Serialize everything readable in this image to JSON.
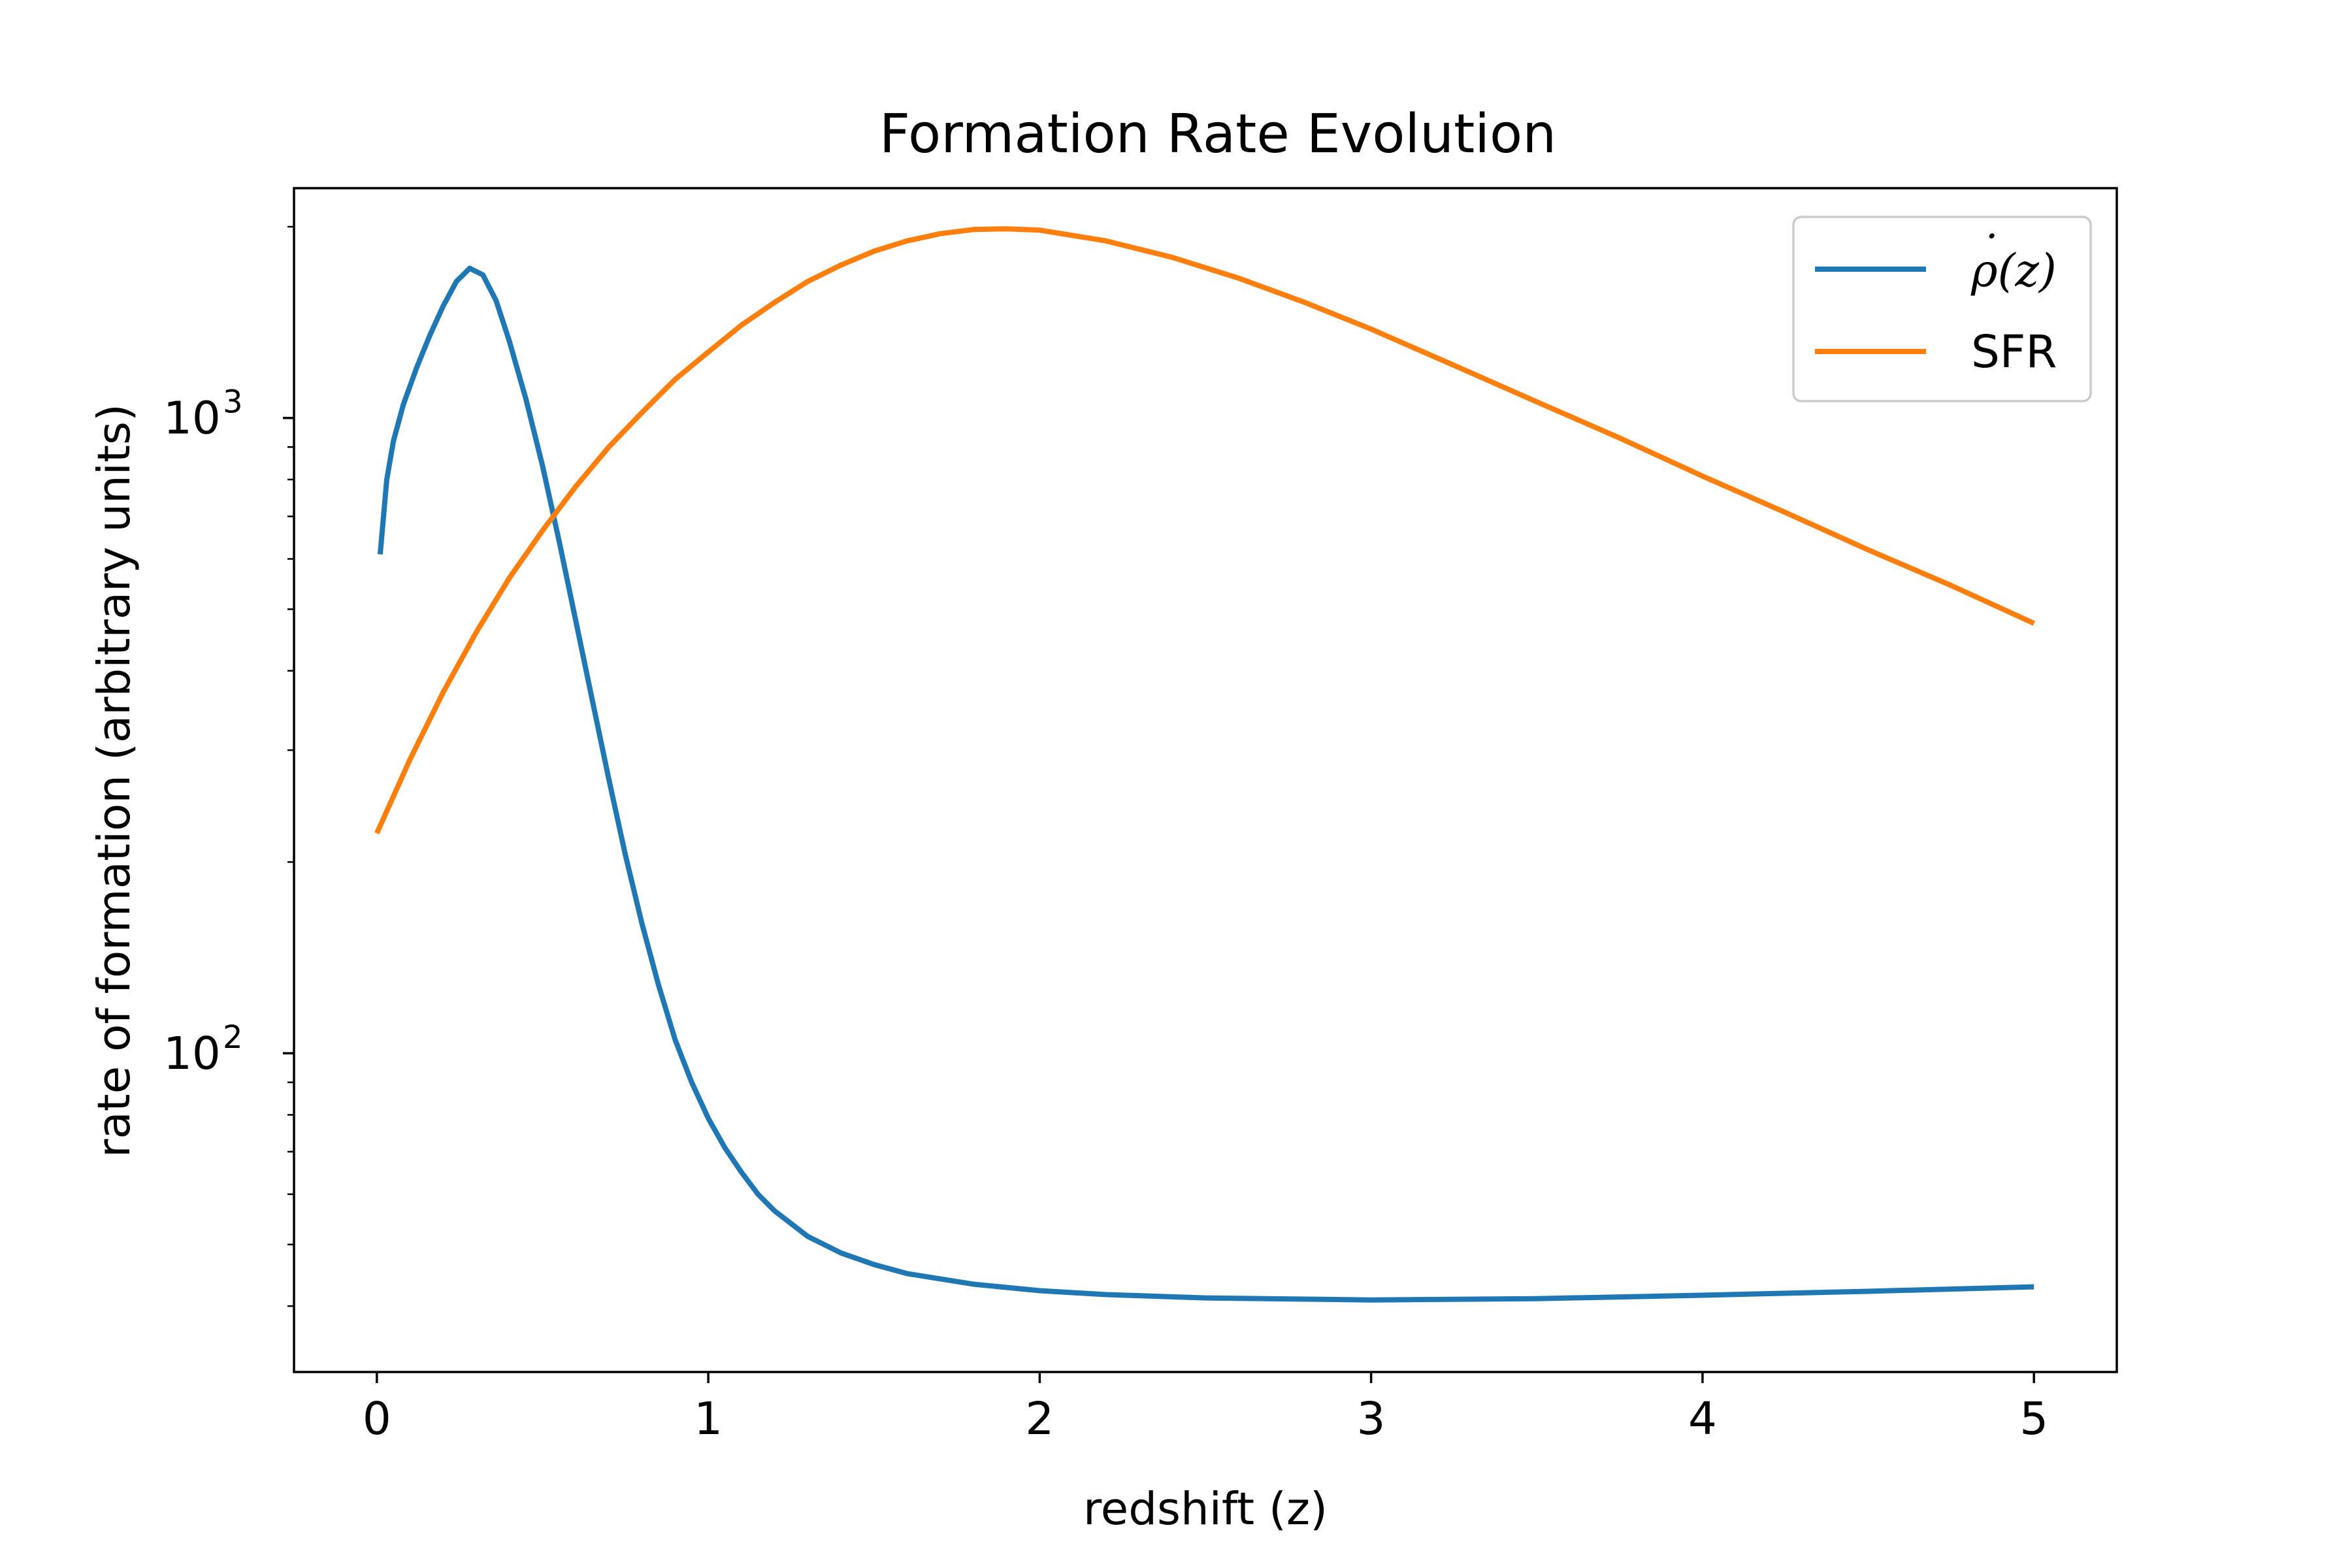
{
  "chart_data": {
    "type": "line",
    "title": "Formation Rate Evolution",
    "xlabel": "redshift (z)",
    "ylabel": "rate of formation (arbitrary units)",
    "xlim": [
      -0.25,
      5.25
    ],
    "ylim": [
      31.5,
      2300
    ],
    "yscale": "log",
    "grid": false,
    "legend_position": "top-right",
    "x_ticks": [
      {
        "value": 0,
        "label": "0"
      },
      {
        "value": 1,
        "label": "1"
      },
      {
        "value": 2,
        "label": "2"
      },
      {
        "value": 3,
        "label": "3"
      },
      {
        "value": 4,
        "label": "4"
      },
      {
        "value": 5,
        "label": "5"
      }
    ],
    "y_ticks": [
      {
        "value": 100,
        "base": "10",
        "exp": "2"
      },
      {
        "value": 1000,
        "base": "10",
        "exp": "3"
      }
    ],
    "y_minor_ticks": [
      40,
      50,
      60,
      70,
      80,
      90,
      200,
      300,
      400,
      500,
      600,
      700,
      800,
      900,
      2000
    ],
    "series": [
      {
        "name": "ρ̇(z)",
        "legend_math": {
          "dot": "˙",
          "base": "ρ",
          "args": "(z)"
        },
        "color": "#1f77b4",
        "x": [
          0.01,
          0.03,
          0.05,
          0.08,
          0.12,
          0.16,
          0.2,
          0.24,
          0.28,
          0.32,
          0.36,
          0.4,
          0.45,
          0.5,
          0.55,
          0.6,
          0.65,
          0.7,
          0.75,
          0.8,
          0.85,
          0.9,
          0.95,
          1.0,
          1.05,
          1.1,
          1.15,
          1.2,
          1.3,
          1.4,
          1.5,
          1.6,
          1.8,
          2.0,
          2.2,
          2.5,
          3.0,
          3.5,
          4.0,
          4.5,
          5.0
        ],
        "y": [
          610,
          800,
          920,
          1050,
          1200,
          1350,
          1500,
          1640,
          1720,
          1680,
          1530,
          1320,
          1070,
          840,
          640,
          480,
          360,
          270,
          205,
          160,
          128,
          105,
          90,
          79,
          71,
          65,
          60,
          56.5,
          51.5,
          48.5,
          46.5,
          45,
          43.3,
          42.3,
          41.7,
          41.2,
          40.9,
          41.1,
          41.6,
          42.2,
          42.9
        ]
      },
      {
        "name": "SFR",
        "color": "#ff7f0e",
        "x": [
          0.0,
          0.1,
          0.2,
          0.3,
          0.4,
          0.5,
          0.6,
          0.7,
          0.8,
          0.9,
          1.0,
          1.1,
          1.2,
          1.3,
          1.4,
          1.5,
          1.6,
          1.7,
          1.8,
          1.9,
          2.0,
          2.2,
          2.4,
          2.6,
          2.8,
          3.0,
          3.25,
          3.5,
          3.75,
          4.0,
          4.25,
          4.5,
          4.75,
          5.0
        ],
        "y": [
          222,
          290,
          370,
          460,
          560,
          665,
          780,
          900,
          1020,
          1150,
          1270,
          1400,
          1520,
          1640,
          1740,
          1830,
          1900,
          1950,
          1980,
          1985,
          1975,
          1900,
          1790,
          1660,
          1520,
          1380,
          1210,
          1060,
          930,
          810,
          710,
          620,
          545,
          475
        ]
      }
    ]
  }
}
